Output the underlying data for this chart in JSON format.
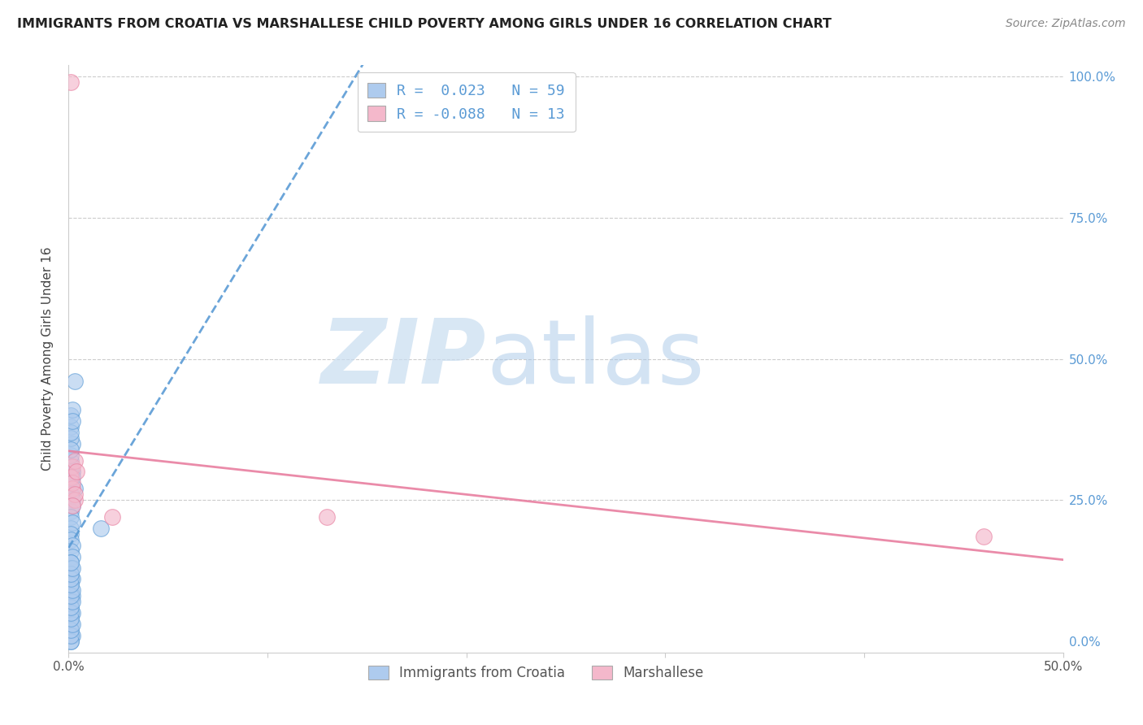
{
  "title": "IMMIGRANTS FROM CROATIA VS MARSHALLESE CHILD POVERTY AMONG GIRLS UNDER 16 CORRELATION CHART",
  "source": "Source: ZipAtlas.com",
  "ylabel": "Child Poverty Among Girls Under 16",
  "xlim": [
    0.0,
    0.5
  ],
  "ylim": [
    -0.02,
    1.02
  ],
  "yticks_right": [
    0.0,
    0.25,
    0.5,
    0.75,
    1.0
  ],
  "yticklabels_right": [
    "0.0%",
    "25.0%",
    "50.0%",
    "75.0%",
    "100.0%"
  ],
  "xtick_show": [
    0.0,
    0.5
  ],
  "xticklabels_show": [
    "0.0%",
    "50.0%"
  ],
  "legend_labels": [
    "Immigrants from Croatia",
    "Marshallese"
  ],
  "r_blue": 0.023,
  "n_blue": 59,
  "r_pink": -0.088,
  "n_pink": 13,
  "blue_color": "#aecbee",
  "pink_color": "#f4b8cb",
  "blue_line_color": "#5b9bd5",
  "pink_line_color": "#e87fa0",
  "blue_scatter_x": [
    0.001,
    0.002,
    0.001,
    0.003,
    0.001,
    0.002,
    0.001,
    0.002,
    0.001,
    0.002,
    0.001,
    0.001,
    0.002,
    0.001,
    0.001,
    0.002,
    0.001,
    0.002,
    0.001,
    0.001,
    0.001,
    0.002,
    0.001,
    0.001,
    0.002,
    0.001,
    0.001,
    0.002,
    0.001,
    0.001,
    0.001,
    0.002,
    0.001,
    0.001,
    0.002,
    0.001,
    0.001,
    0.002,
    0.001,
    0.001,
    0.001,
    0.002,
    0.001,
    0.001,
    0.001,
    0.002,
    0.001,
    0.001,
    0.001,
    0.002,
    0.003,
    0.001,
    0.002,
    0.001,
    0.001,
    0.001,
    0.002,
    0.016,
    0.001
  ],
  "blue_scatter_y": [
    0.32,
    0.3,
    0.28,
    0.27,
    0.31,
    0.29,
    0.26,
    0.25,
    0.23,
    0.24,
    0.22,
    0.2,
    0.21,
    0.19,
    0.18,
    0.17,
    0.16,
    0.15,
    0.14,
    0.13,
    0.12,
    0.11,
    0.1,
    0.09,
    0.08,
    0.07,
    0.06,
    0.05,
    0.04,
    0.03,
    0.02,
    0.01,
    0.0,
    0.33,
    0.35,
    0.38,
    0.4,
    0.41,
    0.36,
    0.34,
    0.37,
    0.39,
    0.0,
    0.01,
    0.02,
    0.03,
    0.04,
    0.05,
    0.06,
    0.07,
    0.46,
    0.08,
    0.09,
    0.1,
    0.11,
    0.12,
    0.13,
    0.2,
    0.14
  ],
  "pink_scatter_x": [
    0.001,
    0.002,
    0.001,
    0.003,
    0.002,
    0.003,
    0.002,
    0.003,
    0.002,
    0.004,
    0.022,
    0.46,
    0.13
  ],
  "pink_scatter_y": [
    0.99,
    0.31,
    0.29,
    0.32,
    0.27,
    0.25,
    0.28,
    0.26,
    0.24,
    0.3,
    0.22,
    0.185,
    0.22
  ],
  "blue_trend_x": [
    0.0,
    0.016
  ],
  "blue_trend_y": [
    0.155,
    0.17
  ],
  "pink_trend_x": [
    0.0,
    0.5
  ],
  "pink_trend_y": [
    0.335,
    0.245
  ]
}
